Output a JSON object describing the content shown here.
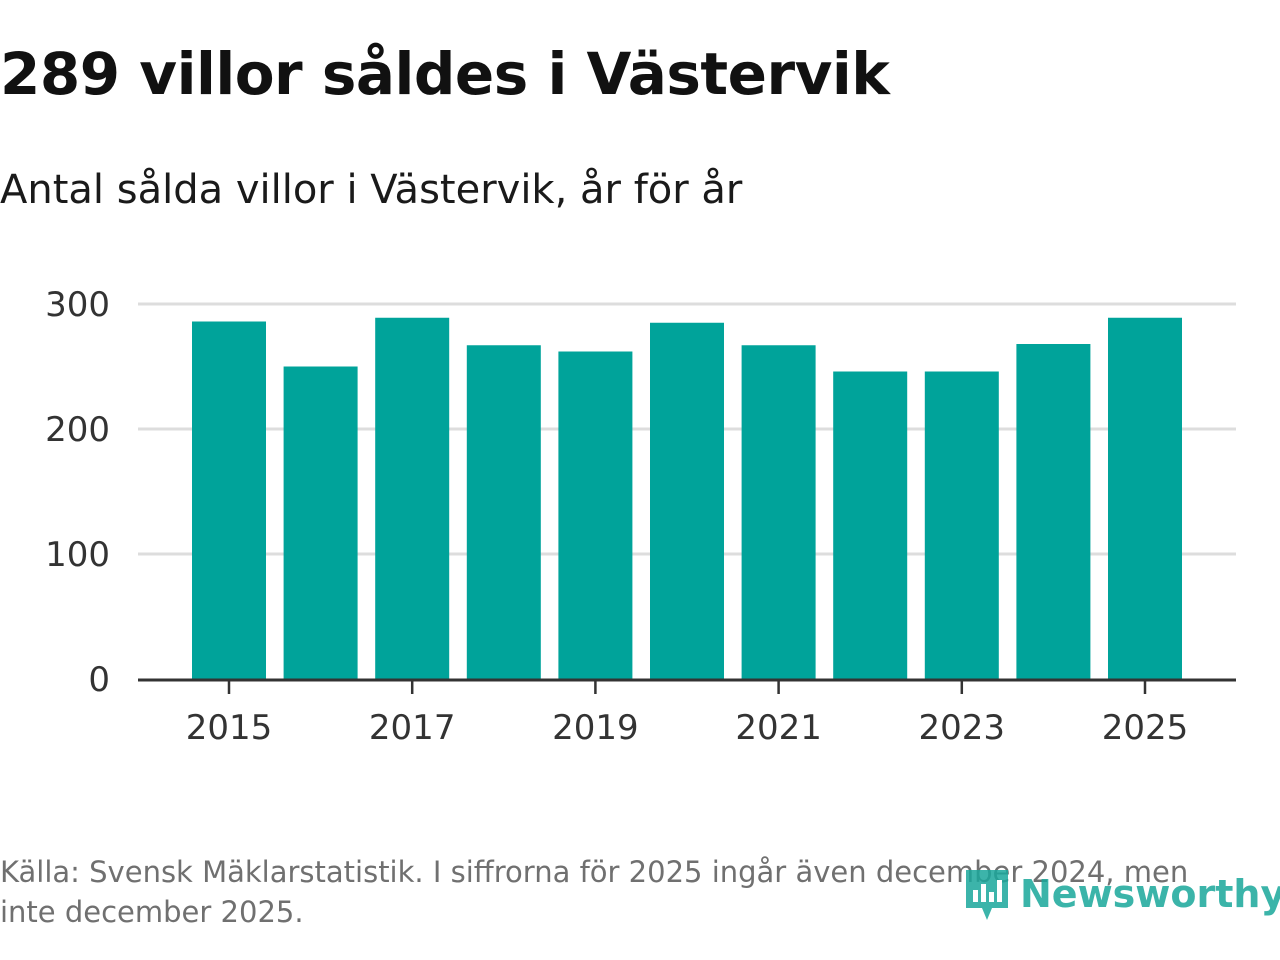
{
  "header": {
    "title": "289 villor såldes i Västervik",
    "subtitle": "Antal sålda villor i Västervik, år för år"
  },
  "footer": {
    "source": "Källa: Svensk Mäklarstatistik. I siffrorna för 2025 ingår även december 2024, men inte december 2025.",
    "logo_text": "Newsworthy",
    "logo_icon": "newsworthy-logo-icon"
  },
  "colors": {
    "bar": "#00a39a",
    "grid": "#dddddd",
    "axis": "#333333",
    "logo": "#1aa79b"
  },
  "chart_data": {
    "type": "bar",
    "categories": [
      "2015",
      "2016",
      "2017",
      "2018",
      "2019",
      "2020",
      "2021",
      "2022",
      "2023",
      "2024",
      "2025"
    ],
    "values": [
      286,
      250,
      289,
      267,
      262,
      285,
      267,
      246,
      246,
      268,
      289
    ],
    "x_tick_labels": [
      "2015",
      "2017",
      "2019",
      "2021",
      "2023",
      "2025"
    ],
    "y_ticks": [
      0,
      100,
      200,
      300
    ],
    "ylim": [
      0,
      300
    ],
    "grid": true,
    "legend": "none",
    "title": "289 villor såldes i Västervik",
    "subtitle": "Antal sålda villor i Västervik, år för år",
    "xlabel": "",
    "ylabel": ""
  }
}
